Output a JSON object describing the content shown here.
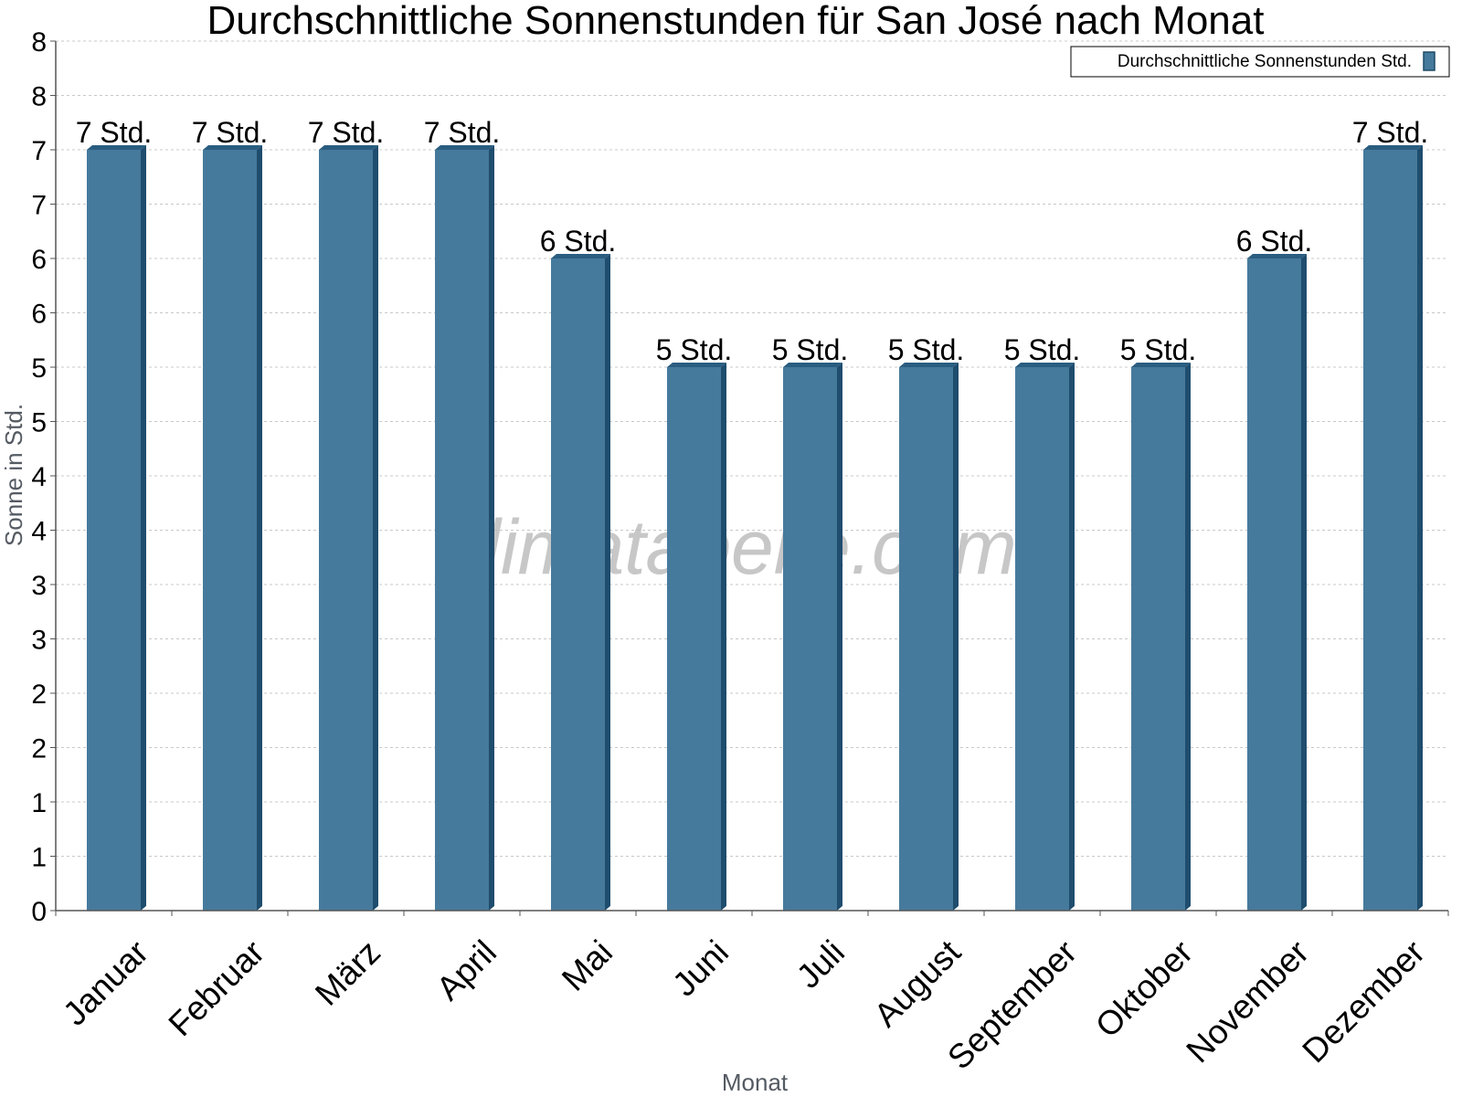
{
  "chart_data": {
    "type": "bar",
    "title": "Durchschnittliche Sonnenstunden für San José nach Monat",
    "xlabel": "Monat",
    "ylabel": "Sonne in Std.",
    "categories": [
      "Januar",
      "Februar",
      "März",
      "April",
      "Mai",
      "Juni",
      "Juli",
      "August",
      "September",
      "Oktober",
      "November",
      "Dezember"
    ],
    "series": [
      {
        "name": "Durchschnittliche Sonnenstunden Std.",
        "values": [
          7.0,
          7.0,
          7.0,
          7.0,
          6.0,
          5.0,
          5.0,
          5.0,
          5.0,
          5.0,
          6.0,
          7.0
        ],
        "data_labels": [
          "7 Std.",
          "7 Std.",
          "7 Std.",
          "7 Std.",
          "6 Std.",
          "5 Std.",
          "5 Std.",
          "5 Std.",
          "5 Std.",
          "5 Std.",
          "6 Std.",
          "7 Std."
        ],
        "color": "#467a9c"
      }
    ],
    "ylim": [
      0,
      8
    ],
    "y_ticks": [
      0,
      0.5,
      1,
      1.5,
      2,
      2.5,
      3,
      3.5,
      4,
      4.5,
      5,
      5.5,
      6,
      6.5,
      7,
      7.5,
      8
    ],
    "y_tick_labels": [
      "0",
      "1",
      "1",
      "2",
      "2",
      "3",
      "3",
      "4",
      "4",
      "5",
      "5",
      "6",
      "6",
      "7",
      "7",
      "8",
      "8"
    ],
    "grid": true,
    "legend_position": "top-right",
    "watermark": "klimatabelle.com"
  }
}
